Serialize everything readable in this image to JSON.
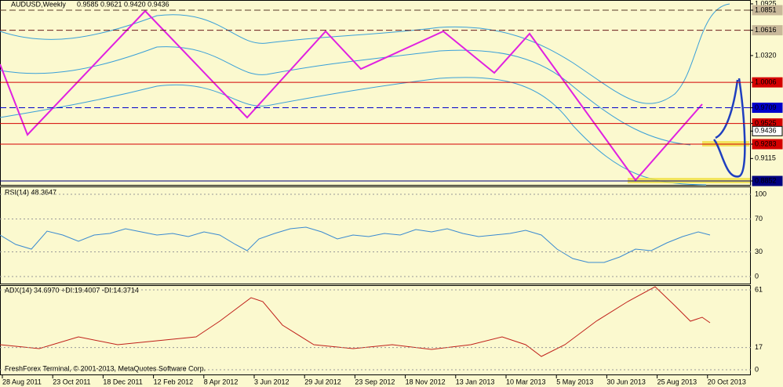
{
  "header": {
    "symbol": "AUDUSD,Weekly",
    "ohlc": "0.9585 0.9621 0.9420 0.9436"
  },
  "price_panel": {
    "ylim": [
      0.8797,
      1.0961
    ],
    "labels": [
      {
        "tick": 1.0925,
        "line": "none",
        "color": "#000000",
        "box": "none"
      },
      {
        "tick": 1.0851,
        "line": "dashed",
        "color": "#5a3a2a",
        "box": "#c8b89a"
      },
      {
        "tick": 1.0616,
        "line": "dashed",
        "color": "#6a1a1a",
        "box": "#c8b89a"
      },
      {
        "tick": {
          "value": 1.032,
          "label": "1.0320"
        },
        "line": "none",
        "color": "#000000",
        "box": "none"
      },
      {
        "tick": 1.0006,
        "line": "solid",
        "color": "#d40000",
        "box": "#d40000"
      },
      {
        "tick": 0.9709,
        "line": "dashed",
        "color": "#0000cc",
        "box": "#0000cc"
      },
      {
        "tick": 0.9525,
        "line": "solid",
        "color": "#d40000",
        "box": "#d40000"
      },
      {
        "tick": 0.9436,
        "line": "none",
        "color": "#000000",
        "box": "#ffffff"
      },
      {
        "tick": 0.9283,
        "line": "solid",
        "color": "#d40000",
        "box": "#d40000"
      },
      {
        "tick": 0.9115,
        "line": "none",
        "color": "#000000",
        "box": "none"
      },
      {
        "tick": 0.8852,
        "line": "solid",
        "color": "#000080",
        "box": "#000080"
      }
    ]
  },
  "rsi_panel": {
    "title": "RSI(14) 48.3647",
    "ylim": [
      -9.5,
      108.6
    ],
    "yticks": [
      100,
      70,
      30,
      0
    ]
  },
  "adx_panel": {
    "title": "ADX(14) 34.6970 +DI:19.4007 -DI:14.3714",
    "ylim": [
      -4.2,
      64
    ],
    "yticks": [
      61,
      17,
      0
    ]
  },
  "footer": "FreshForex Terminal, © 2001-2013, MetaQuotes Software Corp.",
  "dates": [
    "28 Aug 2011",
    "23 Oct 2011",
    "18 Dec 2011",
    "12 Feb 2012",
    "8 Apr 2012",
    "3 Jun 2012",
    "29 Jul 2012",
    "23 Sep 2012",
    "18 Nov 2012",
    "13 Jan 2013",
    "10 Mar 2013",
    "5 May 2013",
    "30 Jun 2013",
    "25 Aug 2013",
    "20 Oct 2013"
  ]
}
